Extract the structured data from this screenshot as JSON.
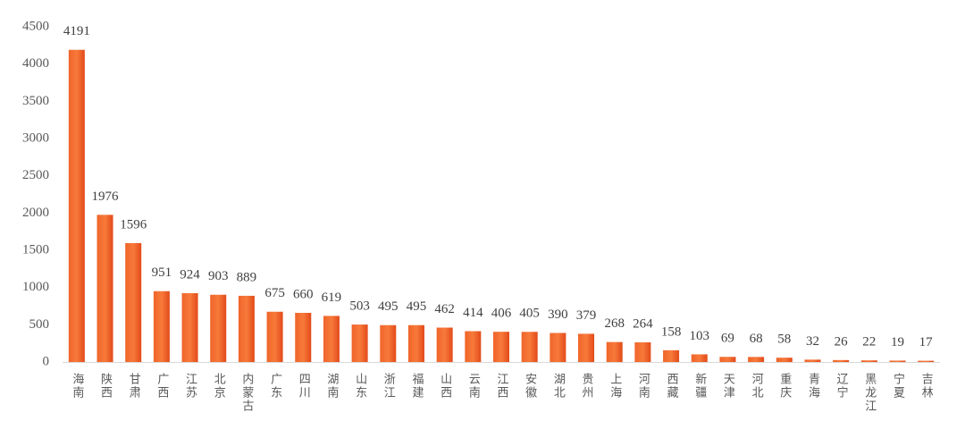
{
  "chart_data": {
    "type": "bar",
    "categories": [
      "海南",
      "陕西",
      "甘肃",
      "广西",
      "江苏",
      "北京",
      "内蒙古",
      "广东",
      "四川",
      "湖南",
      "山东",
      "浙江",
      "福建",
      "山西",
      "云南",
      "江西",
      "安徽",
      "湖北",
      "贵州",
      "上海",
      "河南",
      "西藏",
      "新疆",
      "天津",
      "河北",
      "重庆",
      "青海",
      "辽宁",
      "黑龙江",
      "宁夏",
      "吉林"
    ],
    "values": [
      4191,
      1976,
      1596,
      951,
      924,
      903,
      889,
      675,
      660,
      619,
      503,
      495,
      495,
      462,
      414,
      406,
      405,
      390,
      379,
      268,
      264,
      158,
      103,
      69,
      68,
      58,
      32,
      26,
      22,
      19,
      17
    ],
    "color": "#ec5a24",
    "ylim": [
      0,
      4500
    ],
    "yticks": [
      0,
      500,
      1000,
      1500,
      2000,
      2500,
      3000,
      3500,
      4000,
      4500
    ],
    "grid": false
  }
}
